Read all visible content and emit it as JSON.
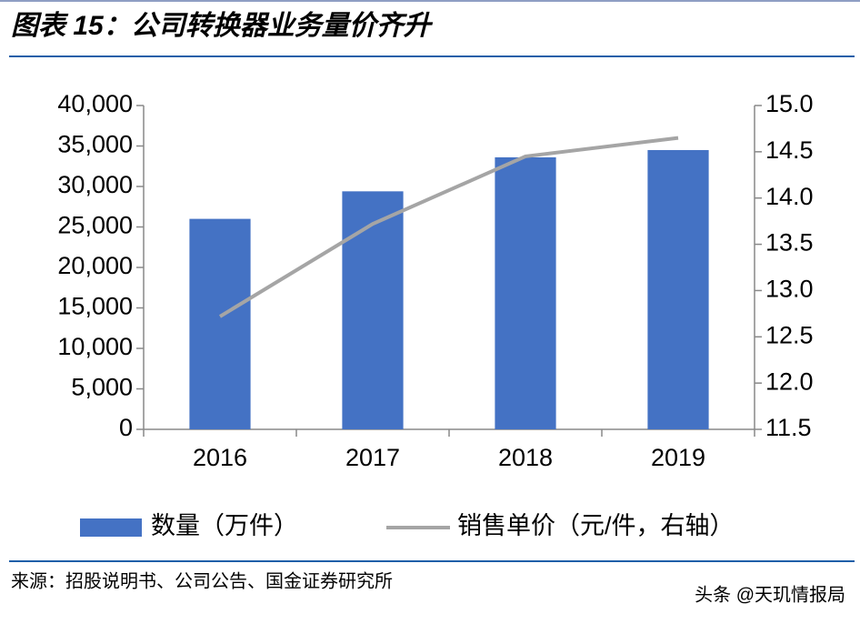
{
  "chart_data": {
    "type": "bar",
    "title": "图表 15：公司转换器业务量价齐升",
    "categories": [
      "2016",
      "2017",
      "2018",
      "2019"
    ],
    "series": [
      {
        "name": "数量（万件）",
        "color": "#4472c4",
        "values": [
          26000,
          29400,
          33600,
          34500
        ]
      },
      {
        "name": "销售单价（元/件，右轴）",
        "color": "#a5a5a5",
        "type": "line",
        "axis": "y2",
        "values": [
          12.72,
          13.72,
          14.45,
          14.65
        ]
      }
    ],
    "ylim": [
      0,
      40000
    ],
    "yticks": [
      0,
      {
        "value": 5000,
        "label": "5,000"
      },
      {
        "value": 10000,
        "label": "10,000"
      },
      {
        "value": 15000,
        "label": "15,000"
      },
      {
        "value": 20000,
        "label": "20,000"
      },
      {
        "value": 25000,
        "label": "25,000"
      },
      {
        "value": 30000,
        "label": "30,000"
      },
      {
        "value": 35000,
        "label": "35,000"
      },
      {
        "value": 40000,
        "label": "40,000"
      }
    ],
    "y2lim": [
      11.5,
      15
    ],
    "y2ticks": [
      11.5,
      {
        "value": 12,
        "label": "12.0"
      },
      12.5,
      {
        "value": 13,
        "label": "13.0"
      },
      13.5,
      {
        "value": 14,
        "label": "14.0"
      },
      14.5,
      {
        "value": 15,
        "label": "15.0"
      }
    ],
    "grid": false,
    "legend": "bottom"
  },
  "source": "来源：招股说明书、公司公告、国金证券研究所",
  "watermark": "头条 @天玑情报局"
}
